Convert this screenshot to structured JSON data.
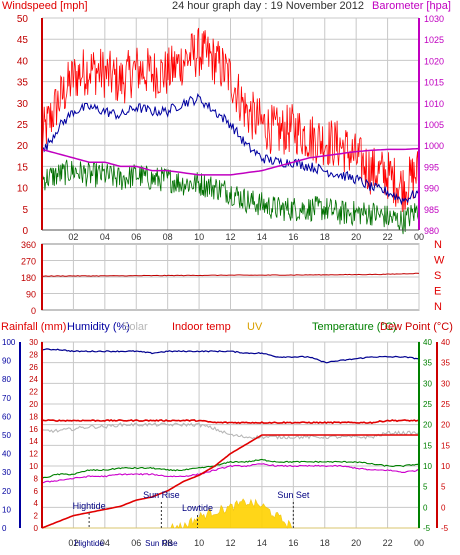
{
  "title": "24 hour graph day : 19 November 2012",
  "colors": {
    "wind": "#ff0000",
    "gust": "#ff0000",
    "avgwind": "#0000a0",
    "windLow": "#007000",
    "baro": "#c000c0",
    "humidity": "#000090",
    "solar": "#b8b8b8",
    "indoor": "#e00000",
    "uv": "#ffd200",
    "temp": "#008000",
    "dew": "#cc00cc",
    "rain": "#e00000",
    "grid": "#c8c8c8",
    "tideA": "#0000a0",
    "tideB": "#000000"
  },
  "panel1": {
    "left_label": "Windspeed [mph]",
    "right_label": "Barometer [hpa]",
    "y_ticks": [
      "50",
      "45",
      "40",
      "35",
      "30",
      "25",
      "20",
      "15",
      "10",
      "5",
      "0"
    ],
    "baro_ticks": [
      "1030",
      "1025",
      "1020",
      "1015",
      "1010",
      "1005",
      "1000",
      "995",
      "990",
      "985",
      "980"
    ],
    "x_ticks": [
      "02",
      "04",
      "06",
      "08",
      "10",
      "12",
      "14",
      "16",
      "18",
      "20",
      "22",
      "00"
    ]
  },
  "panel2": {
    "y_ticks": [
      "360",
      "270",
      "180",
      "90",
      "0"
    ],
    "compass": [
      "N",
      "W",
      "S",
      "E",
      "N"
    ],
    "x_ticks": [
      "02",
      "04",
      "06",
      "08",
      "10",
      "12",
      "14",
      "16",
      "18",
      "20",
      "22",
      "00"
    ]
  },
  "panel3": {
    "legend": {
      "rainfall": "Rainfall (mm)",
      "humidity": "Humidity (%)",
      "solar": "Solar",
      "indoor": "Indoor temp",
      "uv": "UV",
      "temperature": "Temperature (°C)",
      "dew": "Dew Point (°C)"
    },
    "hum_ticks": [
      "100",
      "90",
      "80",
      "70",
      "60",
      "50",
      "40",
      "30",
      "20",
      "10",
      "0"
    ],
    "rain_ticks": [
      "30",
      "28",
      "26",
      "24",
      "22",
      "20",
      "18",
      "16",
      "14",
      "12",
      "10",
      "8",
      "6",
      "4",
      "2",
      "0"
    ],
    "temp_ticks": [
      "40",
      "35",
      "30",
      "25",
      "20",
      "15",
      "10",
      "5",
      "0",
      "-5"
    ],
    "dew_ticks": [
      "40",
      "35",
      "30",
      "25",
      "20",
      "15",
      "10",
      "5",
      "0",
      "-5"
    ],
    "x_ticks": [
      "02",
      "04",
      "06",
      "08",
      "10",
      "12",
      "14",
      "16",
      "18",
      "20",
      "22",
      "00"
    ],
    "x_ticks_overlay": [
      "Hightide",
      "Sun Rise"
    ],
    "events": {
      "hightide": "Hightide",
      "sunrise": "Sun Rise",
      "lowtide": "Lowtide",
      "sunset": "Sun Set"
    }
  },
  "chart_data": [
    {
      "type": "line",
      "title": "24 hour graph day : 19 November 2012",
      "ylabel": "Windspeed [mph]",
      "y2label": "Barometer [hpa]",
      "ylim": [
        0,
        50
      ],
      "y2lim": [
        980,
        1030
      ],
      "x_hours": [
        0,
        1,
        2,
        3,
        4,
        5,
        6,
        7,
        8,
        9,
        10,
        11,
        12,
        13,
        14,
        15,
        16,
        17,
        18,
        19,
        20,
        21,
        22,
        23,
        24
      ],
      "series": [
        {
          "name": "gust",
          "color": "#ff0000",
          "values": [
            22,
            30,
            36,
            38,
            37,
            35,
            38,
            37,
            37,
            40,
            42,
            40,
            36,
            28,
            25,
            23,
            24,
            22,
            21,
            20,
            17,
            14,
            13,
            10,
            14
          ]
        },
        {
          "name": "average",
          "color": "#0000a0",
          "values": [
            18,
            24,
            28,
            29,
            28,
            27,
            29,
            28,
            28,
            30,
            31,
            28,
            25,
            20,
            17,
            16,
            16,
            15,
            14,
            13,
            12,
            10,
            9,
            7,
            9
          ]
        },
        {
          "name": "low",
          "color": "#007000",
          "values": [
            12,
            13,
            14,
            13,
            13,
            12,
            13,
            12,
            12,
            11,
            11,
            10,
            9,
            7,
            6,
            5,
            5,
            5,
            5,
            4,
            4,
            4,
            3,
            2,
            5
          ]
        },
        {
          "name": "barometer",
          "color": "#c000c0",
          "values": [
            999,
            998,
            997,
            996,
            996,
            995,
            995,
            994,
            994,
            993.5,
            993,
            993,
            993,
            993.5,
            994,
            995,
            996,
            997,
            997.5,
            998,
            998.5,
            998.8,
            999,
            999,
            999.2
          ]
        }
      ]
    },
    {
      "type": "line",
      "ylabel": "Wind direction",
      "ylim": [
        0,
        360
      ],
      "x_hours": [
        0,
        2,
        4,
        6,
        8,
        10,
        12,
        14,
        16,
        18,
        20,
        22,
        24
      ],
      "series": [
        {
          "name": "direction",
          "color": "#c00000",
          "values": [
            185,
            186,
            186,
            187,
            188,
            189,
            190,
            190,
            191,
            192,
            193,
            195,
            200
          ]
        }
      ]
    },
    {
      "type": "line",
      "x_hours": [
        0,
        1,
        2,
        3,
        4,
        5,
        6,
        7,
        8,
        9,
        10,
        11,
        12,
        13,
        14,
        15,
        16,
        17,
        18,
        19,
        20,
        21,
        22,
        23,
        24
      ],
      "series": [
        {
          "name": "Humidity (%)",
          "axis": "humidity",
          "color": "#000090",
          "values": [
            96,
            96,
            95,
            95,
            95,
            95,
            95,
            94,
            95,
            95,
            95,
            95,
            95,
            94,
            94,
            92,
            92,
            92,
            89,
            90,
            91,
            92,
            92,
            92,
            91
          ]
        },
        {
          "name": "Indoor temp",
          "axis": "temp",
          "color": "#e00000",
          "values": [
            21,
            21,
            21,
            21,
            21,
            21,
            21,
            21,
            21,
            21,
            21,
            20.5,
            20.5,
            20.5,
            20.5,
            20.5,
            20.5,
            20.5,
            20.5,
            20.5,
            20.5,
            20.5,
            21,
            21,
            21
          ]
        },
        {
          "name": "Solar",
          "axis": "temp",
          "color": "#b8b8b8",
          "values": [
            18.5,
            18.5,
            19,
            19.5,
            19.5,
            20,
            20,
            20,
            20,
            20,
            20,
            19,
            17.5,
            17,
            17,
            17,
            17,
            17,
            17,
            17,
            17,
            17,
            18,
            18,
            18
          ]
        },
        {
          "name": "Temperature (°C)",
          "axis": "temp",
          "color": "#008000",
          "values": [
            7,
            8,
            8,
            9,
            9,
            9.5,
            9.5,
            9.5,
            9,
            9,
            9.5,
            10,
            11,
            11,
            11.5,
            11,
            11,
            11,
            11,
            11,
            11,
            10.5,
            10,
            10,
            10.5
          ]
        },
        {
          "name": "Dew Point (°C)",
          "axis": "temp",
          "color": "#cc00cc",
          "values": [
            6,
            6.5,
            7,
            7.5,
            7.5,
            8,
            8,
            8,
            7.5,
            7.5,
            8,
            9,
            10,
            10,
            10.5,
            10,
            10,
            10,
            10,
            10,
            9.5,
            9,
            9,
            8.5,
            9
          ]
        },
        {
          "name": "Rainfall (mm)",
          "axis": "rain",
          "color": "#e00000",
          "values": [
            0,
            1,
            2,
            2.5,
            3,
            3.5,
            4.5,
            5,
            6,
            7.5,
            8.5,
            10,
            12,
            13.5,
            15,
            15,
            15,
            15,
            15,
            15,
            15,
            15,
            15,
            15,
            15
          ]
        },
        {
          "name": "UV",
          "axis": "uv",
          "color": "#ffd200",
          "values": [
            0,
            0,
            0,
            0,
            0,
            0,
            0,
            0,
            0,
            0.1,
            0.6,
            0.9,
            1.1,
            1.4,
            1.2,
            0.6,
            0,
            0,
            0,
            0,
            0,
            0,
            0,
            0,
            0
          ]
        }
      ],
      "events": [
        {
          "label": "Hightide",
          "hour": 3.0
        },
        {
          "label": "Sun Rise",
          "hour": 7.6
        },
        {
          "label": "Lowtide",
          "hour": 9.9
        },
        {
          "label": "Sun Set",
          "hour": 16.0
        }
      ]
    }
  ]
}
